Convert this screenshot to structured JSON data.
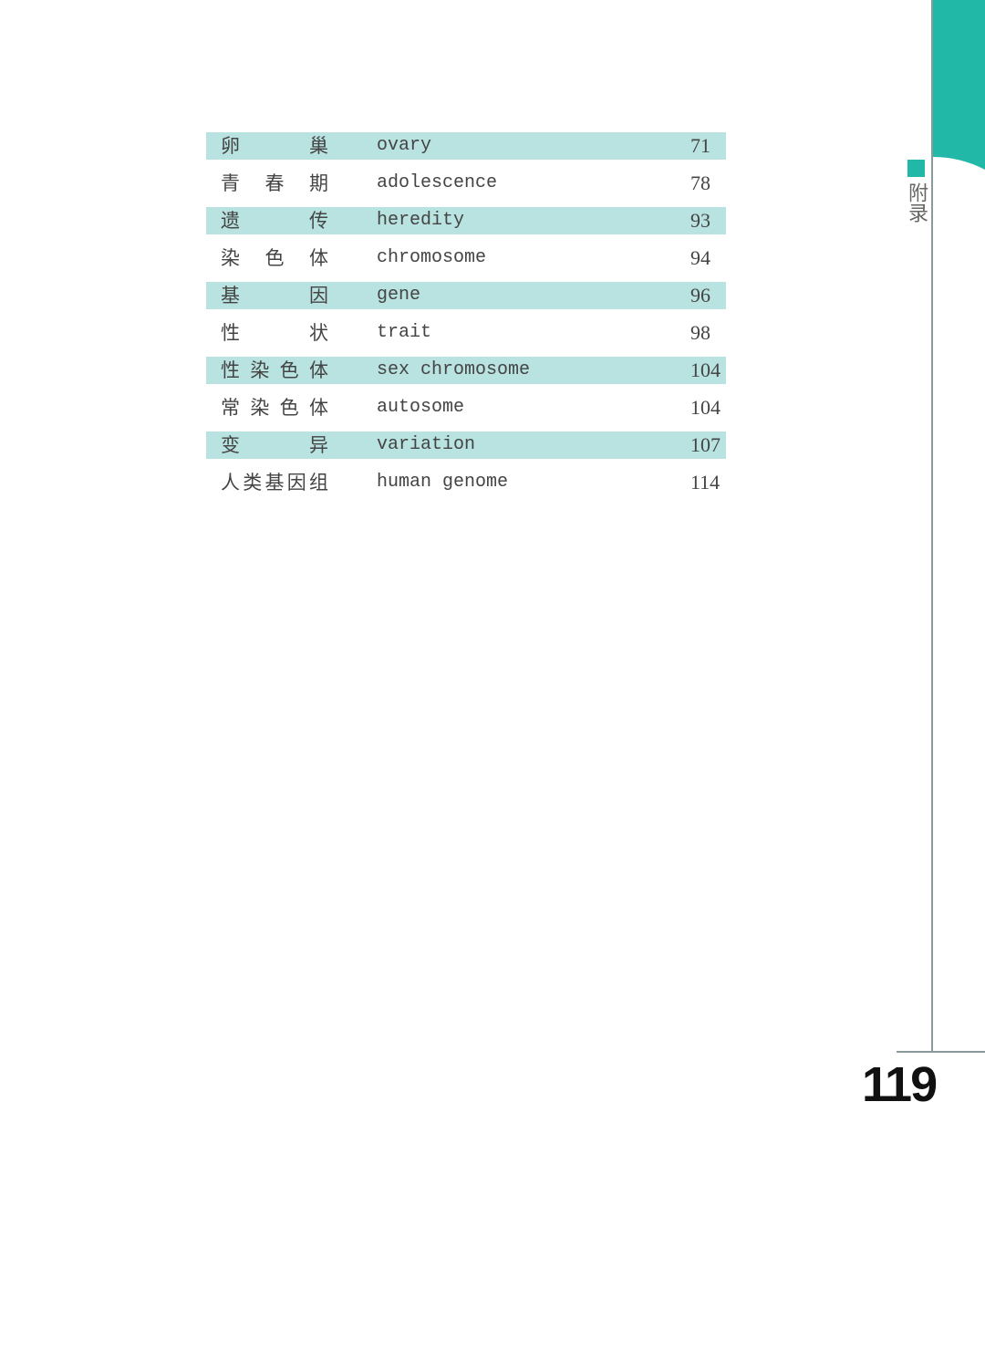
{
  "colors": {
    "accent": "#22b8a8",
    "row_shade": "#b9e3e0"
  },
  "section_label": "附录",
  "page_number": "119",
  "glossary": [
    {
      "zh": "卵巢",
      "en": "ovary",
      "page": "71"
    },
    {
      "zh": "青春期",
      "en": "adolescence",
      "page": "78"
    },
    {
      "zh": "遗传",
      "en": "heredity",
      "page": "93"
    },
    {
      "zh": "染色体",
      "en": "chromosome",
      "page": "94"
    },
    {
      "zh": "基因",
      "en": "gene",
      "page": "96"
    },
    {
      "zh": "性状",
      "en": "trait",
      "page": "98"
    },
    {
      "zh": "性染色体",
      "en": "sex chromosome",
      "page": "104"
    },
    {
      "zh": "常染色体",
      "en": "autosome",
      "page": "104"
    },
    {
      "zh": "变异",
      "en": "variation",
      "page": "107"
    },
    {
      "zh": "人类基因组",
      "en": "human genome",
      "page": "114"
    }
  ]
}
